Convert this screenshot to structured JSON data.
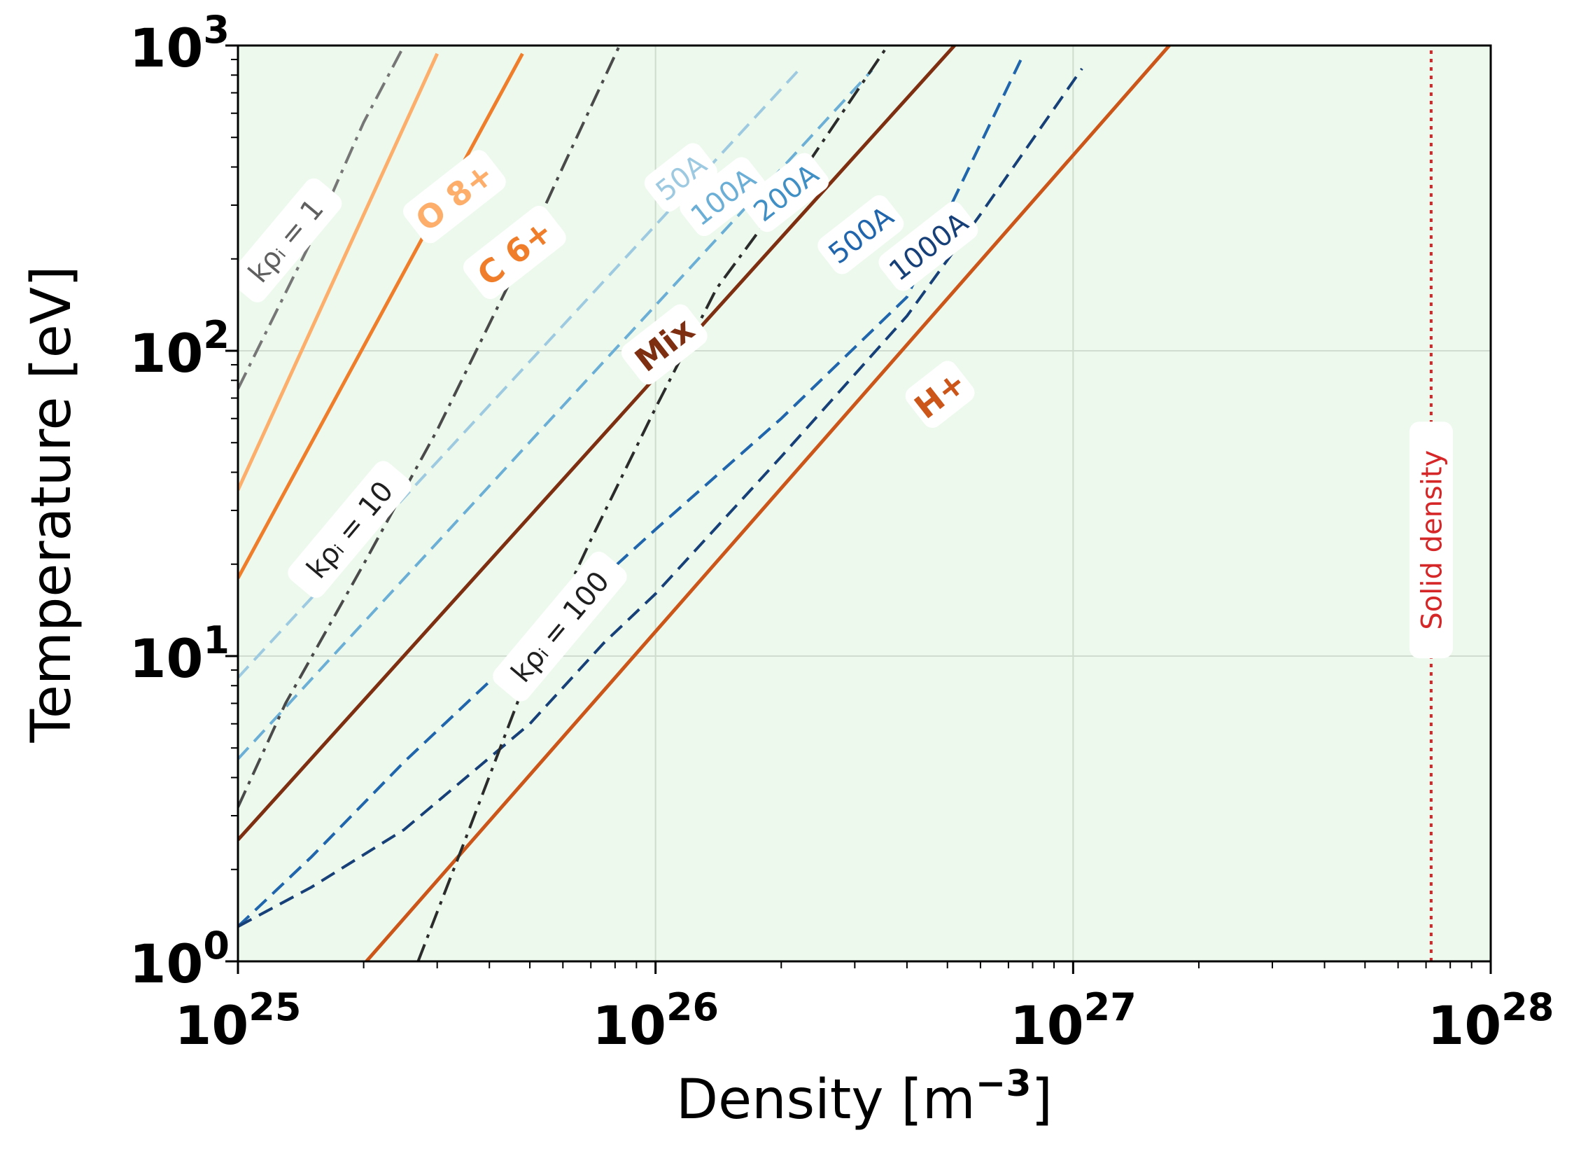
{
  "chart_data": {
    "type": "line",
    "xscale": "log",
    "yscale": "log",
    "xlabel": "Density [m⁻³]",
    "xlabel_base": "Density [m",
    "xlabel_exp": "−3",
    "xlabel_close": "]",
    "ylabel": "Temperature [eV]",
    "xlim": [
      1e+25,
      1e+28
    ],
    "ylim": [
      1,
      1000
    ],
    "grid": true,
    "background": "#ecf9ec",
    "x_ticks": [
      {
        "value": 1e+25,
        "base": "10",
        "exp": "25"
      },
      {
        "value": 1e+26,
        "base": "10",
        "exp": "26"
      },
      {
        "value": 1e+27,
        "base": "10",
        "exp": "27"
      },
      {
        "value": 1e+28,
        "base": "10",
        "exp": "28"
      }
    ],
    "y_ticks": [
      {
        "value": 1,
        "base": "10",
        "exp": "0"
      },
      {
        "value": 10,
        "base": "10",
        "exp": "1"
      },
      {
        "value": 100,
        "base": "10",
        "exp": "2"
      },
      {
        "value": 1000,
        "base": "10",
        "exp": "3"
      }
    ],
    "series": [
      {
        "id": "o8",
        "name": "O 8+",
        "label": "O 8+",
        "style": "solid",
        "color": "#fdae6b",
        "width": 5,
        "points": [
          [
            1e+25,
            35
          ],
          [
            3e+25,
            940
          ]
        ],
        "label_at": [
          3.3e+25,
          320
        ],
        "angle": -38,
        "bold": true
      },
      {
        "id": "c6",
        "name": "C 6+",
        "label": "C 6+",
        "style": "solid",
        "color": "#f07d2a",
        "width": 5,
        "points": [
          [
            1e+25,
            18
          ],
          [
            4.8e+25,
            940
          ]
        ],
        "label_at": [
          4.6e+25,
          210
        ],
        "angle": -38,
        "bold": true
      },
      {
        "id": "mix",
        "name": "Mix",
        "label": "Mix",
        "style": "solid",
        "color": "#7f2f11",
        "width": 5,
        "points": [
          [
            1e+25,
            2.5
          ],
          [
            5.2e+26,
            1000
          ]
        ],
        "label_at": [
          1.05e+26,
          105
        ],
        "angle": -38,
        "bold": true
      },
      {
        "id": "h",
        "name": "H+",
        "label": "H+",
        "style": "solid",
        "color": "#cc5519",
        "width": 5,
        "points": [
          [
            2.03e+25,
            1
          ],
          [
            1.7e+27,
            1000
          ]
        ],
        "label_at": [
          4.8e+26,
          72
        ],
        "angle": -38,
        "bold": true
      },
      {
        "id": "a50",
        "name": "50A",
        "label": "50A",
        "style": "dashed",
        "color": "#9ecae1",
        "width": 4,
        "points": [
          [
            1e+25,
            8.5
          ],
          [
            2.2e+26,
            830
          ]
        ],
        "label_at": [
          1.15e+26,
          370
        ],
        "angle": -38,
        "bold": false
      },
      {
        "id": "a100",
        "name": "100A",
        "label": "100A",
        "style": "dashed",
        "color": "#6baed6",
        "width": 4,
        "points": [
          [
            1e+25,
            4.6
          ],
          [
            3.3e+26,
            830
          ]
        ],
        "label_at": [
          1.45e+26,
          320
        ],
        "angle": -38,
        "bold": false
      },
      {
        "id": "a200",
        "name": "200A",
        "label": "200A",
        "style": "dashed",
        "color": "#4190c5",
        "width": 4,
        "points": [
          [
            1e+25,
            1.3
          ],
          [
            1.5e+25,
            2.2
          ],
          [
            2.5e+25,
            4.5
          ],
          [
            5e+25,
            11
          ],
          [
            1e+26,
            26
          ],
          [
            2e+26,
            60
          ],
          [
            4e+26,
            150
          ],
          [
            7.5e+26,
            900
          ]
        ],
        "label_at": [
          2.05e+26,
          330
        ],
        "angle": -38,
        "bold": false
      },
      {
        "id": "a500",
        "name": "500A",
        "label": "500A",
        "style": "dashed",
        "color": "#2166ac",
        "width": 4,
        "points": [
          [
            1e+25,
            1.3
          ],
          [
            1.5e+25,
            2.2
          ],
          [
            2.5e+25,
            4.5
          ],
          [
            5e+25,
            11
          ],
          [
            1e+26,
            26
          ],
          [
            2e+26,
            60
          ],
          [
            4e+26,
            150
          ],
          [
            7.5e+26,
            900
          ]
        ],
        "label_at": [
          3.1e+26,
          240
        ],
        "angle": -38,
        "bold": false
      },
      {
        "id": "a1000",
        "name": "1000A",
        "label": "1000A",
        "style": "dashed",
        "color": "#173f78",
        "width": 4,
        "points": [
          [
            1e+25,
            1.3
          ],
          [
            1.5e+25,
            1.75
          ],
          [
            2.5e+25,
            2.7
          ],
          [
            5e+25,
            6
          ],
          [
            7.5e+25,
            11
          ],
          [
            1e+26,
            16
          ],
          [
            2e+26,
            45
          ],
          [
            4e+26,
            130
          ],
          [
            6e+26,
            280
          ],
          [
            1.05e+27,
            840
          ]
        ],
        "label_at": [
          4.5e+26,
          220
        ],
        "angle": -38,
        "bold": false
      },
      {
        "id": "k1",
        "name": "kρi = 1",
        "label": "kρᵢ = 1",
        "style": "dashdot",
        "color": "#767676",
        "width": 4,
        "points": [
          [
            1e+25,
            75
          ],
          [
            1.5e+25,
            230
          ],
          [
            2e+25,
            560
          ],
          [
            2.5e+25,
            1000
          ]
        ],
        "label_at": [
          1.3e+25,
          230
        ],
        "angle": -50,
        "bold": false
      },
      {
        "id": "k10",
        "name": "kρi = 10",
        "label": "kρᵢ = 10",
        "style": "dashdot",
        "color": "#4a4a4a",
        "width": 4,
        "points": [
          [
            1e+25,
            3.2
          ],
          [
            1.3e+25,
            7
          ],
          [
            2e+25,
            20
          ],
          [
            3e+25,
            55
          ],
          [
            4.5e+25,
            170
          ],
          [
            6e+25,
            400
          ],
          [
            8.2e+25,
            1000
          ]
        ],
        "label_at": [
          1.85e+25,
          26
        ],
        "angle": -50,
        "bold": false
      },
      {
        "id": "k100",
        "name": "kρi = 100",
        "label": "kρᵢ = 100",
        "style": "dashdot",
        "color": "#2b2b2b",
        "width": 4,
        "points": [
          [
            2.7e+25,
            1
          ],
          [
            3.5e+25,
            2.5
          ],
          [
            5e+25,
            9
          ],
          [
            7e+25,
            24
          ],
          [
            1e+26,
            65
          ],
          [
            1.4e+26,
            160
          ],
          [
            2.2e+26,
            370
          ],
          [
            3.6e+26,
            1000
          ]
        ],
        "label_at": [
          5.9e+25,
          12.5
        ],
        "angle": -50,
        "bold": false
      },
      {
        "id": "solid",
        "name": "Solid density",
        "label": "Solid density",
        "style": "dotted",
        "color": "#d62728",
        "width": 4,
        "points": [
          [
            7.2e+27,
            1
          ],
          [
            7.2e+27,
            1000
          ]
        ],
        "label_at": [
          7.2e+27,
          24
        ],
        "angle": -90,
        "bold": false
      }
    ]
  }
}
